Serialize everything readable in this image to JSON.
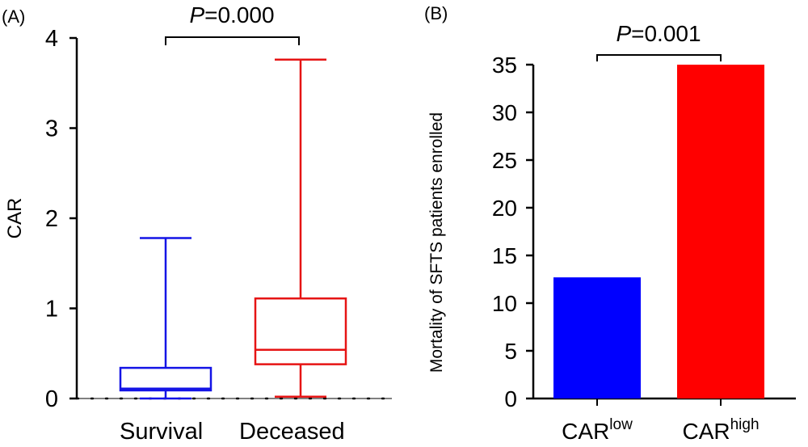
{
  "chart_data": [
    {
      "type": "box",
      "panel_label": "(A)",
      "ylabel": "CAR",
      "ylim": [
        0,
        4
      ],
      "yticks": [
        "0",
        "1",
        "2",
        "3",
        "4"
      ],
      "categories": [
        "Survival",
        "Deceased"
      ],
      "boxes": [
        {
          "category": "Survival",
          "min": 0.0,
          "q1": 0.09,
          "median": 0.11,
          "q3": 0.34,
          "max": 1.78,
          "color": "#1414e6"
        },
        {
          "category": "Deceased",
          "min": 0.02,
          "q1": 0.38,
          "median": 0.54,
          "q3": 1.11,
          "max": 3.76,
          "color": "#e61414"
        }
      ],
      "significance": {
        "p_symbol": "P",
        "p_value": "=0.000"
      }
    },
    {
      "type": "bar",
      "panel_label": "(B)",
      "ylabel": "Mortality of SFTS patients enrolled",
      "ylim": [
        0,
        35
      ],
      "yticks": [
        "0",
        "5",
        "10",
        "15",
        "20",
        "25",
        "30",
        "35"
      ],
      "categories": [
        {
          "base": "CAR",
          "sup": "low"
        },
        {
          "base": "CAR",
          "sup": "high"
        }
      ],
      "values": [
        12.7,
        35.0
      ],
      "colors": [
        "#0000ff",
        "#ff0000"
      ],
      "significance": {
        "p_symbol": "P",
        "p_value": "=0.001"
      }
    }
  ]
}
